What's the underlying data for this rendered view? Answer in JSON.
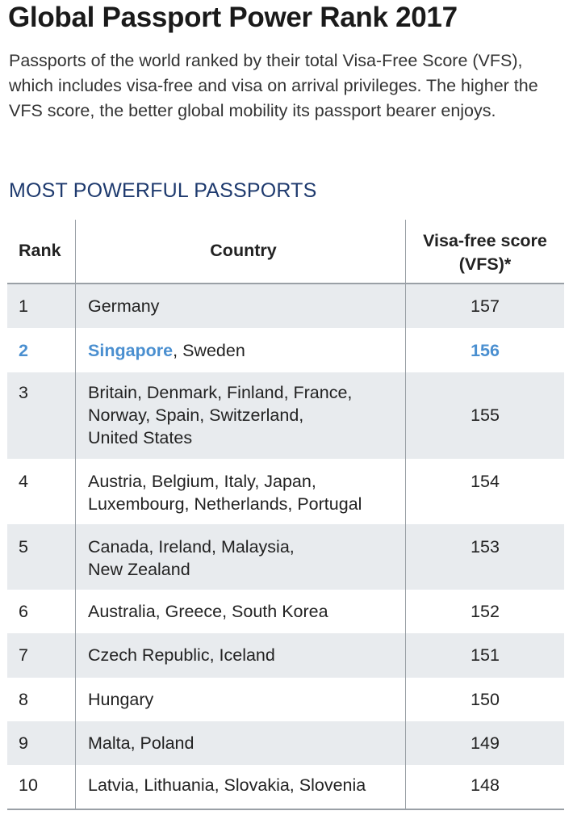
{
  "title": "Global Passport Power Rank 2017",
  "subtitle": "Passports of the world ranked by their total Visa-Free Score (VFS), which includes visa-free and visa on arrival privileges. The higher the VFS score, the better global mobility its passport bearer enjoys.",
  "section_title": "MOST POWERFUL PASSPORTS",
  "colors": {
    "highlight": "#4a8fd0",
    "section": "#1e3a6e",
    "stripe": "#e8ebee"
  },
  "chart_data": {
    "type": "table",
    "columns": [
      "Rank",
      "Country",
      "Visa-free score (VFS)*"
    ],
    "highlighted_country": "Singapore",
    "rows": [
      {
        "rank": "1",
        "country_lines": [
          "Germany"
        ],
        "score": 157
      },
      {
        "rank": "2",
        "country_lines": [
          "Singapore, Sweden"
        ],
        "score": 156
      },
      {
        "rank": "3",
        "country_lines": [
          "Britain, Denmark, Finland, France,",
          "Norway, Spain, Switzerland,",
          "United States"
        ],
        "score": 155
      },
      {
        "rank": "4",
        "country_lines": [
          "Austria, Belgium, Italy, Japan,",
          "Luxembourg, Netherlands, Portugal"
        ],
        "score": 154
      },
      {
        "rank": "5",
        "country_lines": [
          "Canada, Ireland, Malaysia,",
          "New Zealand"
        ],
        "score": 153
      },
      {
        "rank": "6",
        "country_lines": [
          "Australia, Greece, South Korea"
        ],
        "score": 152
      },
      {
        "rank": "7",
        "country_lines": [
          "Czech Republic, Iceland"
        ],
        "score": 151
      },
      {
        "rank": "8",
        "country_lines": [
          "Hungary"
        ],
        "score": 150
      },
      {
        "rank": "9",
        "country_lines": [
          "Malta, Poland"
        ],
        "score": 149
      },
      {
        "rank": "10",
        "country_lines": [
          "Latvia, Lithuania, Slovakia, Slovenia"
        ],
        "score": 148
      }
    ]
  }
}
